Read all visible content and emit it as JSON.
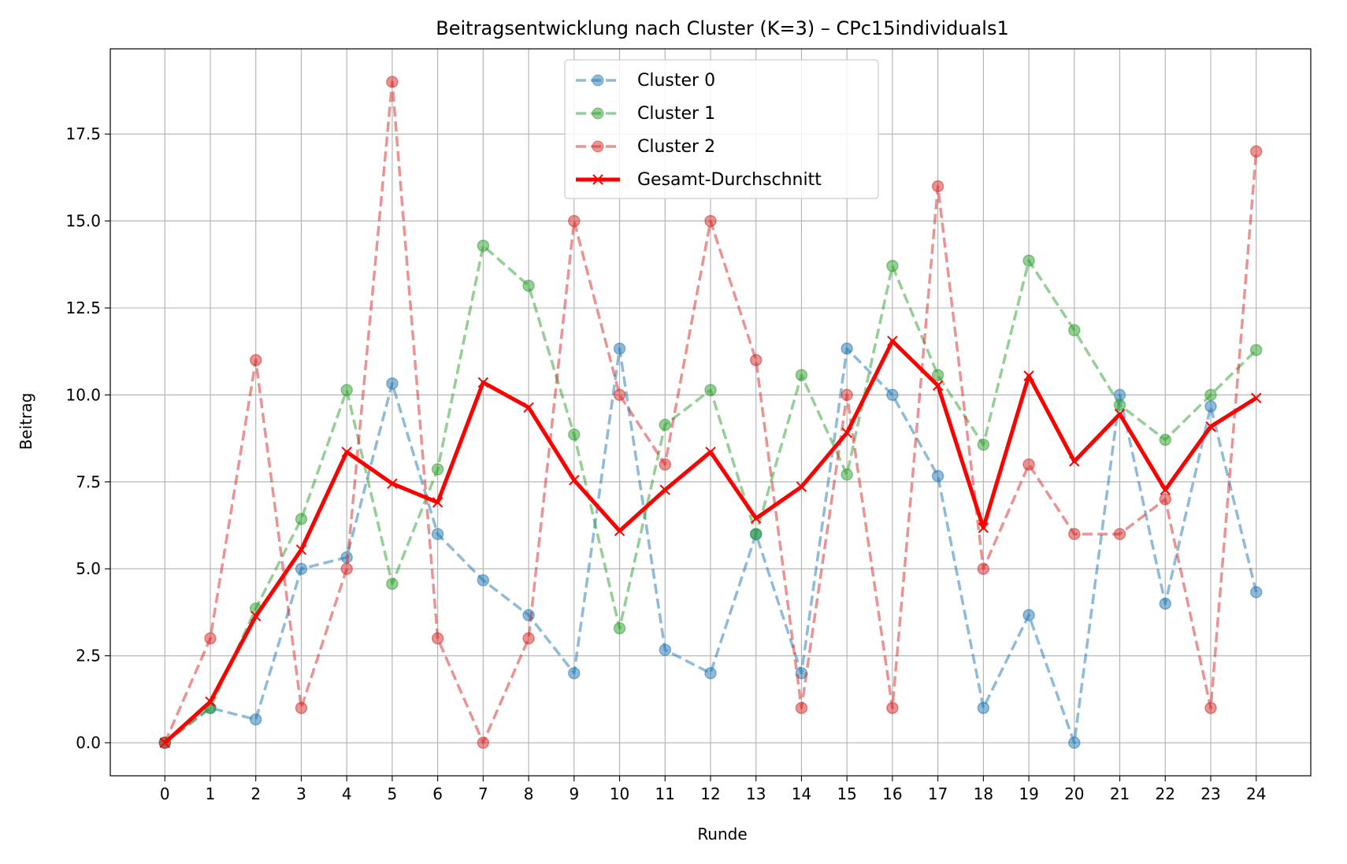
{
  "chart_data": {
    "type": "line",
    "title": "Beitragsentwicklung nach Cluster (K=3) – CPc15individuals1",
    "xlabel": "Runde",
    "ylabel": "Beitrag",
    "x": [
      0,
      1,
      2,
      3,
      4,
      5,
      6,
      7,
      8,
      9,
      10,
      11,
      12,
      13,
      14,
      15,
      16,
      17,
      18,
      19,
      20,
      21,
      22,
      23,
      24
    ],
    "xlim": [
      -1.2,
      25.2
    ],
    "ylim": [
      -0.95,
      19.95
    ],
    "x_ticks": [
      "0",
      "1",
      "2",
      "3",
      "4",
      "5",
      "6",
      "7",
      "8",
      "9",
      "10",
      "11",
      "12",
      "13",
      "14",
      "15",
      "16",
      "17",
      "18",
      "19",
      "20",
      "21",
      "22",
      "23",
      "24"
    ],
    "y_ticks": [
      {
        "value": 0,
        "label": "0.0"
      },
      {
        "value": 2.5,
        "label": "2.5"
      },
      {
        "value": 5,
        "label": "5.0"
      },
      {
        "value": 7.5,
        "label": "7.5"
      },
      {
        "value": 10,
        "label": "10.0"
      },
      {
        "value": 12.5,
        "label": "12.5"
      },
      {
        "value": 15,
        "label": "15.0"
      },
      {
        "value": 17.5,
        "label": "17.5"
      }
    ],
    "grid": true,
    "legend_position": "top-center",
    "series": [
      {
        "name": "Cluster 0",
        "color": "#1f77b4",
        "style": "dashed",
        "marker": "circle",
        "values": [
          0,
          1.0,
          0.67,
          5.0,
          5.33,
          10.33,
          6.0,
          4.67,
          3.67,
          2.0,
          11.33,
          2.67,
          2.0,
          6.0,
          2.0,
          11.33,
          10.0,
          7.67,
          1.0,
          3.67,
          0.0,
          10.0,
          4.0,
          9.67,
          4.33
        ]
      },
      {
        "name": "Cluster 1",
        "color": "#2ca02c",
        "style": "dashed",
        "marker": "circle",
        "values": [
          0,
          1.0,
          3.86,
          6.43,
          10.14,
          4.57,
          7.86,
          14.29,
          13.14,
          8.86,
          3.29,
          9.14,
          10.14,
          6.0,
          10.57,
          7.71,
          13.71,
          10.57,
          8.57,
          13.86,
          11.86,
          9.71,
          8.71,
          10.0,
          11.29
        ]
      },
      {
        "name": "Cluster 2",
        "color": "#d62728",
        "style": "dashed",
        "marker": "circle",
        "values": [
          0,
          3.0,
          11.0,
          1.0,
          5.0,
          19.0,
          3.0,
          0.0,
          3.0,
          15.0,
          10.0,
          8.0,
          15.0,
          11.0,
          1.0,
          10.0,
          1.0,
          16.0,
          5.0,
          8.0,
          6.0,
          6.0,
          7.0,
          1.0,
          17.0
        ]
      },
      {
        "name": "Gesamt-Durchschnitt",
        "color": "#ff0000",
        "style": "solid",
        "marker": "x",
        "values": [
          0,
          1.18,
          3.64,
          5.55,
          8.36,
          7.45,
          6.91,
          10.36,
          9.64,
          7.55,
          6.09,
          7.27,
          8.36,
          6.45,
          7.36,
          8.91,
          11.55,
          10.27,
          6.18,
          10.55,
          8.09,
          9.45,
          7.27,
          9.09,
          9.91
        ]
      }
    ]
  }
}
